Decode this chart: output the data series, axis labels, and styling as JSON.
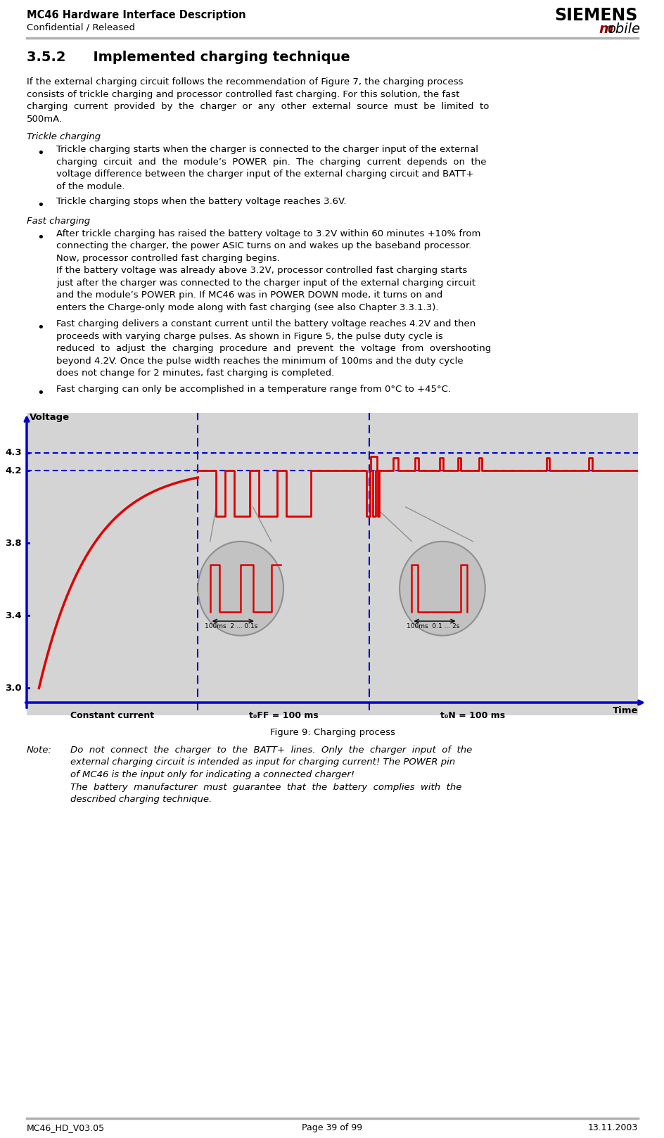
{
  "header_title": "MC46 Hardware Interface Description",
  "header_subtitle": "Confidential / Released",
  "siemens_text": "SIEMENS",
  "mobile_m": "m",
  "mobile_rest": "obile",
  "section_title": "3.5.2  Implemented charging technique",
  "body_text_lines": [
    "If the external charging circuit follows the recommendation of Figure 7, the charging process",
    "consists of trickle charging and processor controlled fast charging. For this solution, the fast",
    "charging  current  provided  by  the  charger  or  any  other  external  source  must  be  limited  to",
    "500mA."
  ],
  "trickle_header": "Trickle charging",
  "trickle_bullet1_lines": [
    "Trickle charging starts when the charger is connected to the charger input of the external",
    "charging  circuit  and  the  module’s  POWER  pin.  The  charging  current  depends  on  the",
    "voltage difference between the charger input of the external charging circuit and BATT+",
    "of the module."
  ],
  "trickle_bullet2_lines": [
    "Trickle charging stops when the battery voltage reaches 3.6V."
  ],
  "fast_header": "Fast charging",
  "fast_bullet1_lines": [
    "After trickle charging has raised the battery voltage to 3.2V within 60 minutes +10% from",
    "connecting the charger, the power ASIC turns on and wakes up the baseband processor.",
    "Now, processor controlled fast charging begins.",
    "If the battery voltage was already above 3.2V, processor controlled fast charging starts",
    "just after the charger was connected to the charger input of the external charging circuit",
    "and the module’s POWER pin. If MC46 was in POWER DOWN mode, it turns on and",
    "enters the Charge-only mode along with fast charging (see also Chapter 3.3.1.3)."
  ],
  "fast_bullet2_lines": [
    "Fast charging delivers a constant current until the battery voltage reaches 4.2V and then",
    "proceeds with varying charge pulses. As shown in Figure 5, the pulse duty cycle is",
    "reduced  to  adjust  the  charging  procedure  and  prevent  the  voltage  from  overshooting",
    "beyond 4.2V. Once the pulse width reaches the minimum of 100ms and the duty cycle",
    "does not change for 2 minutes, fast charging is completed."
  ],
  "fast_bullet3_lines": [
    "Fast charging can only be accomplished in a temperature range from 0°C to +45°C."
  ],
  "figure_caption": "Figure 9: Charging process",
  "note_label": "Note:",
  "note_lines": [
    "Do  not  connect  the  charger  to  the  BATT+  lines.  Only  the  charger  input  of  the",
    "external charging circuit is intended as input for charging current! The POWER pin",
    "of MC46 is the input only for indicating a connected charger!",
    "The  battery  manufacturer  must  guarantee  that  the  battery  complies  with  the",
    "described charging technique."
  ],
  "footer_left": "MC46_HD_V03.05",
  "footer_center": "Page 39 of 99",
  "footer_right": "13.11.2003",
  "chart_ylabel": "Voltage",
  "chart_xlabel": "Time",
  "chart_xlabels": [
    "Constant current",
    "t₀FF = 100 ms",
    "t₀N = 100 ms"
  ],
  "zoom_label1": "100ms  2 ... 0.1s",
  "zoom_label2": "100ms  0.1 ... 2s",
  "black": "#000000",
  "dark_red": "#8B0000",
  "blue": "#0000cc",
  "red": "#dd0000",
  "gray_bg": "#d4d4d4",
  "light_gray": "#b0b0b0",
  "zoom_gray": "#c0c0c0"
}
